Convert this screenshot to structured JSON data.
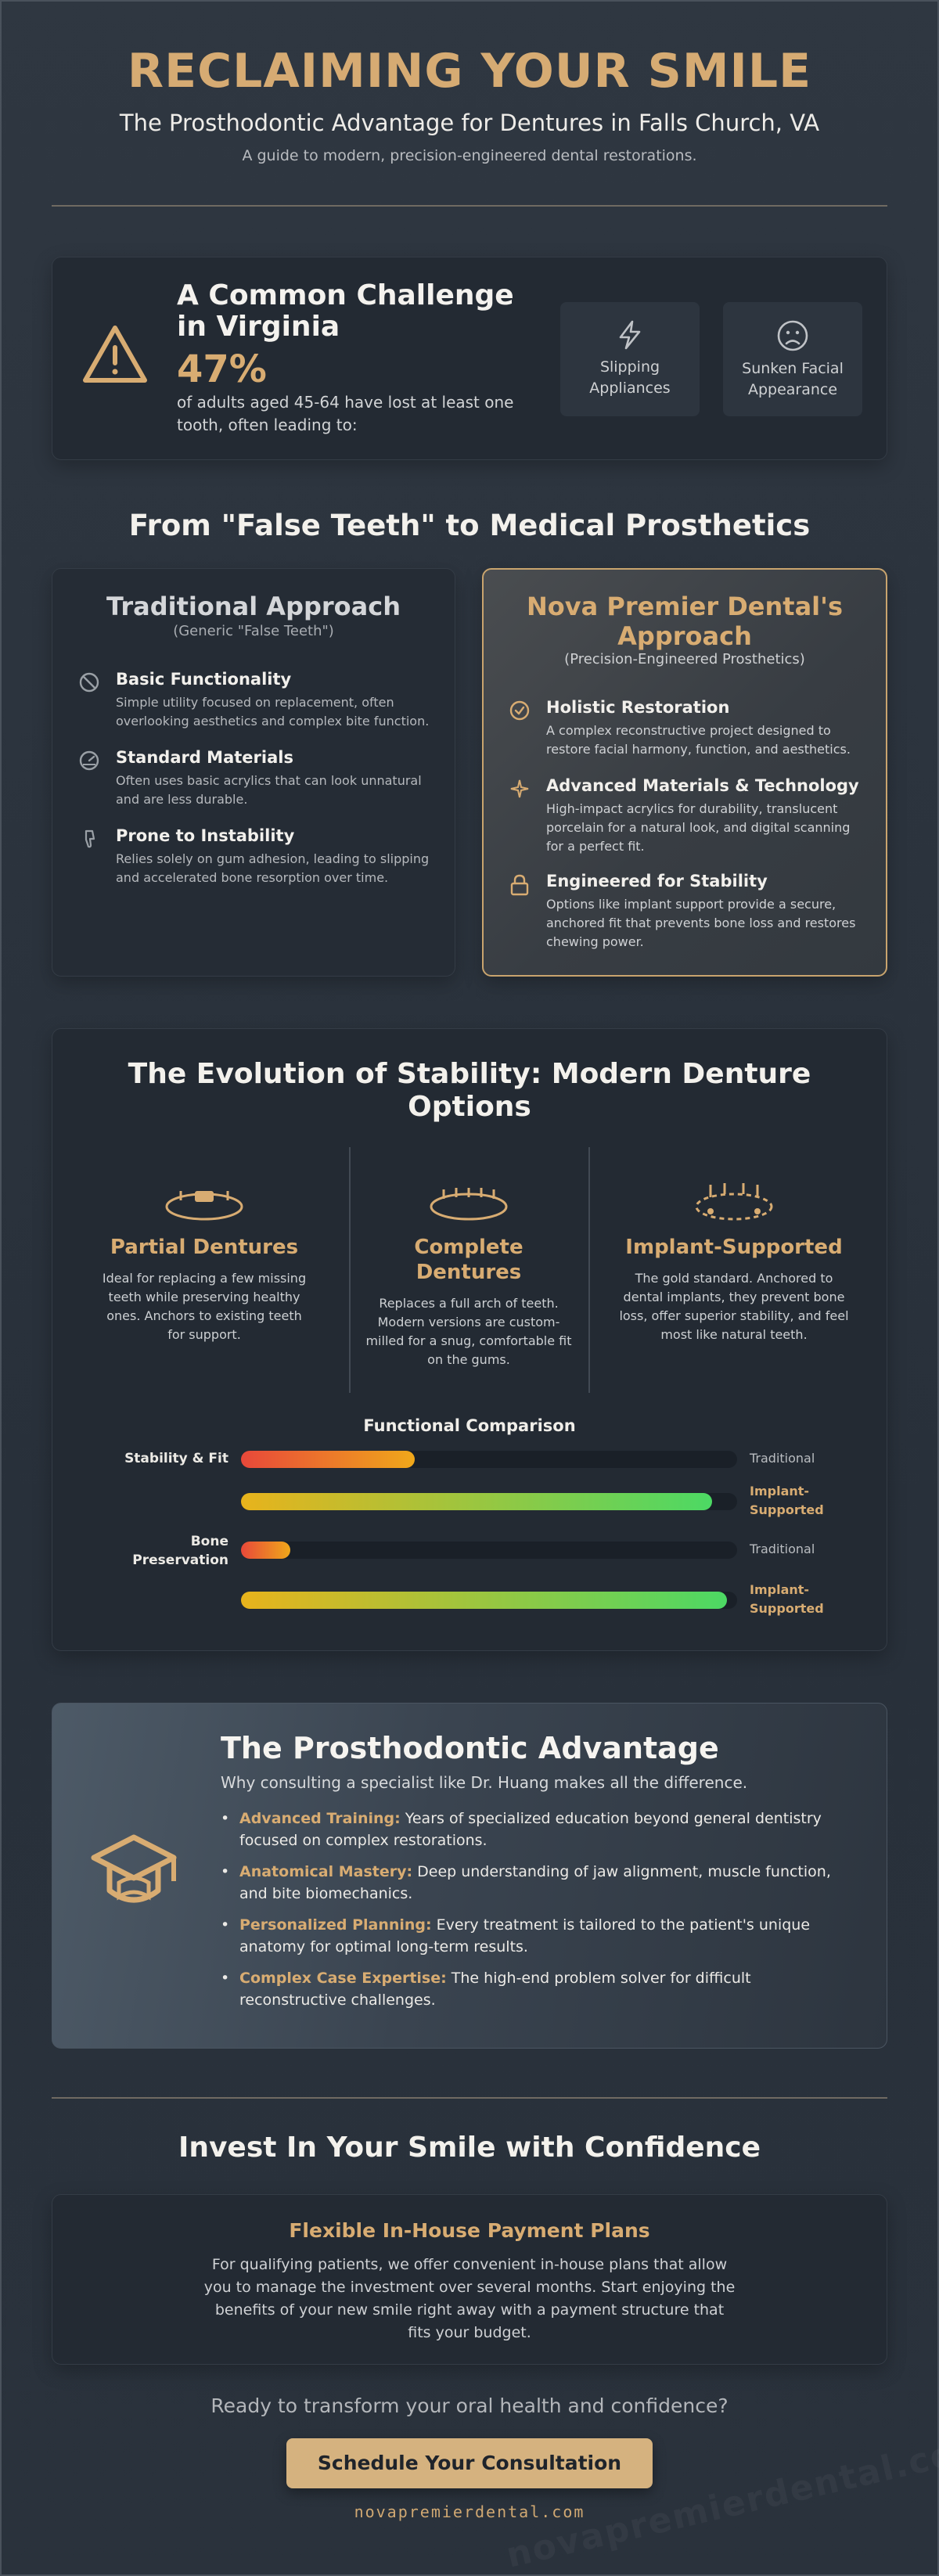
{
  "header": {
    "title": "RECLAIMING YOUR SMILE",
    "subtitle": "The Prosthodontic Advantage for Dentures in Falls Church, VA",
    "tagline": "A guide to modern, precision-engineered dental restorations."
  },
  "challenge": {
    "icon": "warning-triangle-icon",
    "title": "A Common Challenge in Virginia",
    "stat": "47%",
    "description": "of adults aged 45-64 have lost at least one tooth, often leading to:",
    "effects": [
      {
        "icon": "lightning-icon",
        "label": "Slipping Appliances"
      },
      {
        "icon": "sad-face-icon",
        "label": "Sunken Facial Appearance"
      }
    ]
  },
  "comparison": {
    "heading": "From \"False Teeth\" to Medical Prosthetics",
    "traditional": {
      "title": "Traditional Approach",
      "subtitle": "(Generic \"False Teeth\")",
      "items": [
        {
          "icon": "ban-icon",
          "title": "Basic Functionality",
          "text": "Simple utility focused on replacement, often overlooking aesthetics and complex bite function."
        },
        {
          "icon": "gauge-icon",
          "title": "Standard Materials",
          "text": "Often uses basic acrylics that can look unnatural and are less durable."
        },
        {
          "icon": "thumbs-down-icon",
          "title": "Prone to Instability",
          "text": "Relies solely on gum adhesion, leading to slipping and accelerated bone resorption over time."
        }
      ]
    },
    "premier": {
      "title": "Nova Premier Dental's Approach",
      "subtitle": "(Precision-Engineered Prosthetics)",
      "items": [
        {
          "icon": "check-circle-icon",
          "title": "Holistic Restoration",
          "text": "A complex reconstructive project designed to restore facial harmony, function, and aesthetics."
        },
        {
          "icon": "sparkle-icon",
          "title": "Advanced Materials & Technology",
          "text": "High-impact acrylics for durability, translucent porcelain for a natural look, and digital scanning for a perfect fit."
        },
        {
          "icon": "lock-icon",
          "title": "Engineered for Stability",
          "text": "Options like implant support provide a secure, anchored fit that prevents bone loss and restores chewing power."
        }
      ]
    }
  },
  "evolution": {
    "heading": "The Evolution of Stability: Modern Denture Options",
    "options": [
      {
        "icon": "partial-denture-icon",
        "name": "Partial Dentures",
        "text": "Ideal for replacing a few missing teeth while preserving healthy ones. Anchors to existing teeth for support."
      },
      {
        "icon": "complete-denture-icon",
        "name": "Complete Dentures",
        "text": "Replaces a full arch of teeth. Modern versions are custom-milled for a snug, comfortable fit on the gums."
      },
      {
        "icon": "implant-denture-icon",
        "name": "Implant-Supported",
        "text": "The gold standard. Anchored to dental implants, they prevent bone loss, offer superior stability, and feel most like natural teeth."
      }
    ],
    "chart_title": "Functional Comparison",
    "chart_data": {
      "type": "bar",
      "categories": [
        "Stability & Fit",
        "Bone Preservation"
      ],
      "series": [
        {
          "name": "Traditional",
          "values": [
            35,
            10
          ]
        },
        {
          "name": "Implant-Supported",
          "values": [
            95,
            98
          ]
        }
      ],
      "ylim": [
        0,
        100
      ]
    },
    "colors": {
      "traditional": "#f0a81a",
      "implant": "#4cd964"
    }
  },
  "advantage": {
    "icon": "graduation-cap-icon",
    "title": "The Prosthodontic Advantage",
    "subtitle": "Why consulting a specialist like Dr. Huang makes all the difference.",
    "points": [
      {
        "key": "Advanced Training:",
        "text": " Years of specialized education beyond general dentistry focused on complex restorations."
      },
      {
        "key": "Anatomical Mastery:",
        "text": " Deep understanding of jaw alignment, muscle function, and bite biomechanics."
      },
      {
        "key": "Personalized Planning:",
        "text": " Every treatment is tailored to the patient's unique anatomy for optimal long-term results."
      },
      {
        "key": "Complex Case Expertise:",
        "text": " The high-end problem solver for difficult reconstructive challenges."
      }
    ]
  },
  "invest": {
    "heading": "Invest In Your Smile with Confidence",
    "plan_title": "Flexible In-House Payment Plans",
    "plan_text": "For qualifying patients, we offer convenient in-house plans that allow you to manage the investment over several months. Start enjoying the benefits of your new smile right away with a payment structure that fits your budget."
  },
  "cta": {
    "question": "Ready to transform your oral health and confidence?",
    "button": "Schedule Your Consultation",
    "website": "novapremierdental.com",
    "watermark": "novapremierdental.com"
  },
  "theme": {
    "accent": "#d8ac72",
    "background": "#2b333d",
    "card": "#232a33"
  }
}
